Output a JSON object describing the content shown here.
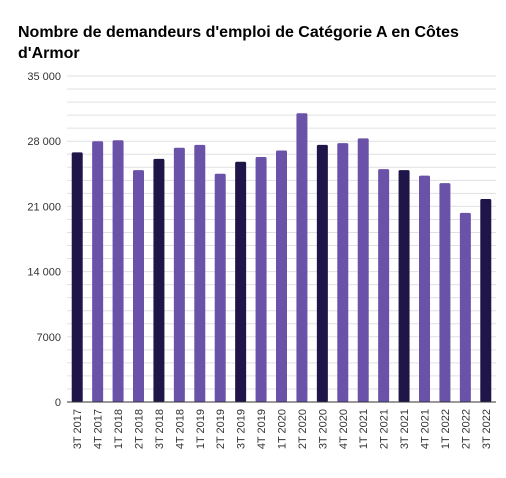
{
  "chart_data": {
    "type": "bar",
    "title": "Nombre de demandeurs d'emploi de Catégorie A en Côtes d'Armor",
    "xlabel": "",
    "ylabel": "",
    "ylim": [
      0,
      35000
    ],
    "yticks": [
      0,
      7000,
      14000,
      21000,
      28000,
      35000
    ],
    "ytick_labels": [
      "0",
      "7000",
      "14 000",
      "21 000",
      "28 000",
      "35 000"
    ],
    "grid": true,
    "legend": "none",
    "categories": [
      "3T 2017",
      "4T 2017",
      "1T 2018",
      "2T 2018",
      "3T 2018",
      "4T 2018",
      "1T 2019",
      "2T 2019",
      "3T 2019",
      "4T 2019",
      "1T 2020",
      "2T 2020",
      "3T 2020",
      "4T 2020",
      "1T 2021",
      "2T 2021",
      "3T 2021",
      "4T 2021",
      "1T 2022",
      "2T 2022",
      "3T 2022"
    ],
    "values": [
      26800,
      28000,
      28100,
      24900,
      26100,
      27300,
      27600,
      24500,
      25800,
      26300,
      27000,
      31000,
      27600,
      27800,
      28300,
      25000,
      24900,
      24300,
      23500,
      20300,
      21800
    ],
    "colors": {
      "highlight": "#1f1548",
      "default": "#6a52a8",
      "grid": "#e0e0e0",
      "axis": "#333333"
    },
    "highlight_categories": [
      "3T 2017",
      "3T 2018",
      "3T 2019",
      "3T 2020",
      "3T 2021",
      "3T 2022"
    ]
  }
}
